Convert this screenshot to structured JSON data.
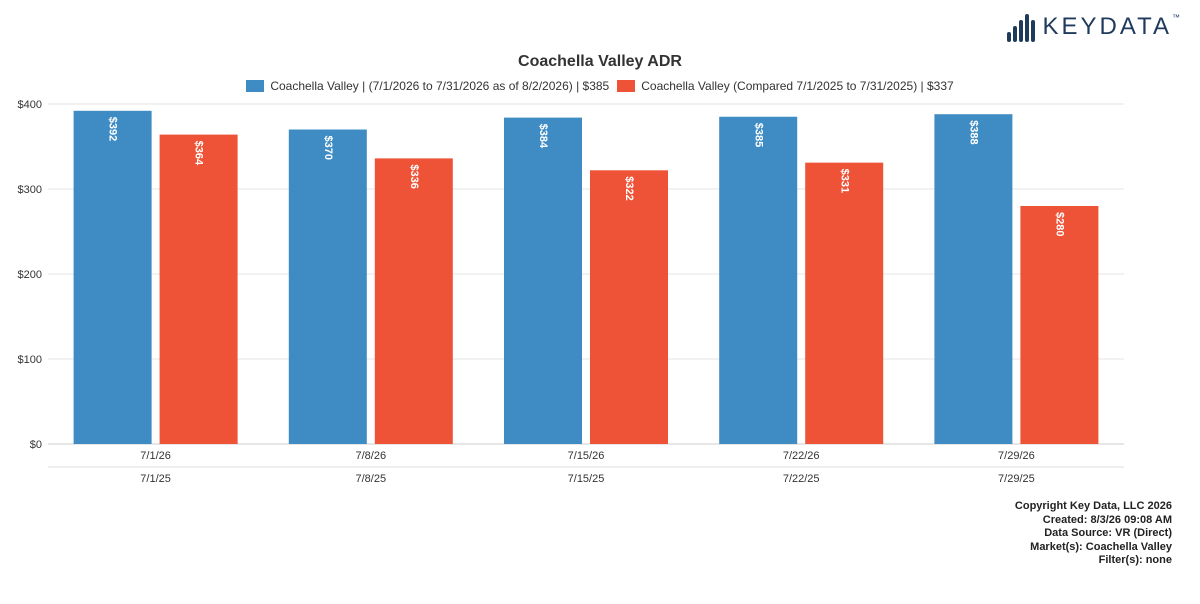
{
  "logo": {
    "text": "KEYDATA",
    "tm": "™"
  },
  "chart_data": {
    "type": "bar",
    "title": "Coachella Valley ADR",
    "categories": [
      "7/1/26",
      "7/8/26",
      "7/15/26",
      "7/22/26",
      "7/29/26"
    ],
    "secondary_categories": [
      "7/1/25",
      "7/8/25",
      "7/15/25",
      "7/22/25",
      "7/29/25"
    ],
    "series": [
      {
        "name": "Coachella Valley | (7/1/2026 to 7/31/2026 as of 8/2/2026) | $385",
        "color": "#3f8cc4",
        "values": [
          392,
          370,
          384,
          385,
          388
        ],
        "labels": [
          "$392",
          "$370",
          "$384",
          "$385",
          "$388"
        ]
      },
      {
        "name": "Coachella Valley (Compared 7/1/2025 to 7/31/2025) | $337",
        "color": "#ee5237",
        "values": [
          364,
          336,
          322,
          331,
          280
        ],
        "labels": [
          "$364",
          "$336",
          "$322",
          "$331",
          "$280"
        ]
      }
    ],
    "ylim": [
      0,
      400
    ],
    "yticks": [
      0,
      100,
      200,
      300,
      400
    ],
    "ytick_labels": [
      "$0",
      "$100",
      "$200",
      "$300",
      "$400"
    ],
    "grid": true,
    "legend_position": "top"
  },
  "footer": {
    "lines": [
      "Copyright Key Data, LLC 2026",
      "Created: 8/3/26 09:08 AM",
      "Data Source: VR (Direct)",
      "Market(s):  Coachella Valley",
      "Filter(s): none"
    ]
  }
}
